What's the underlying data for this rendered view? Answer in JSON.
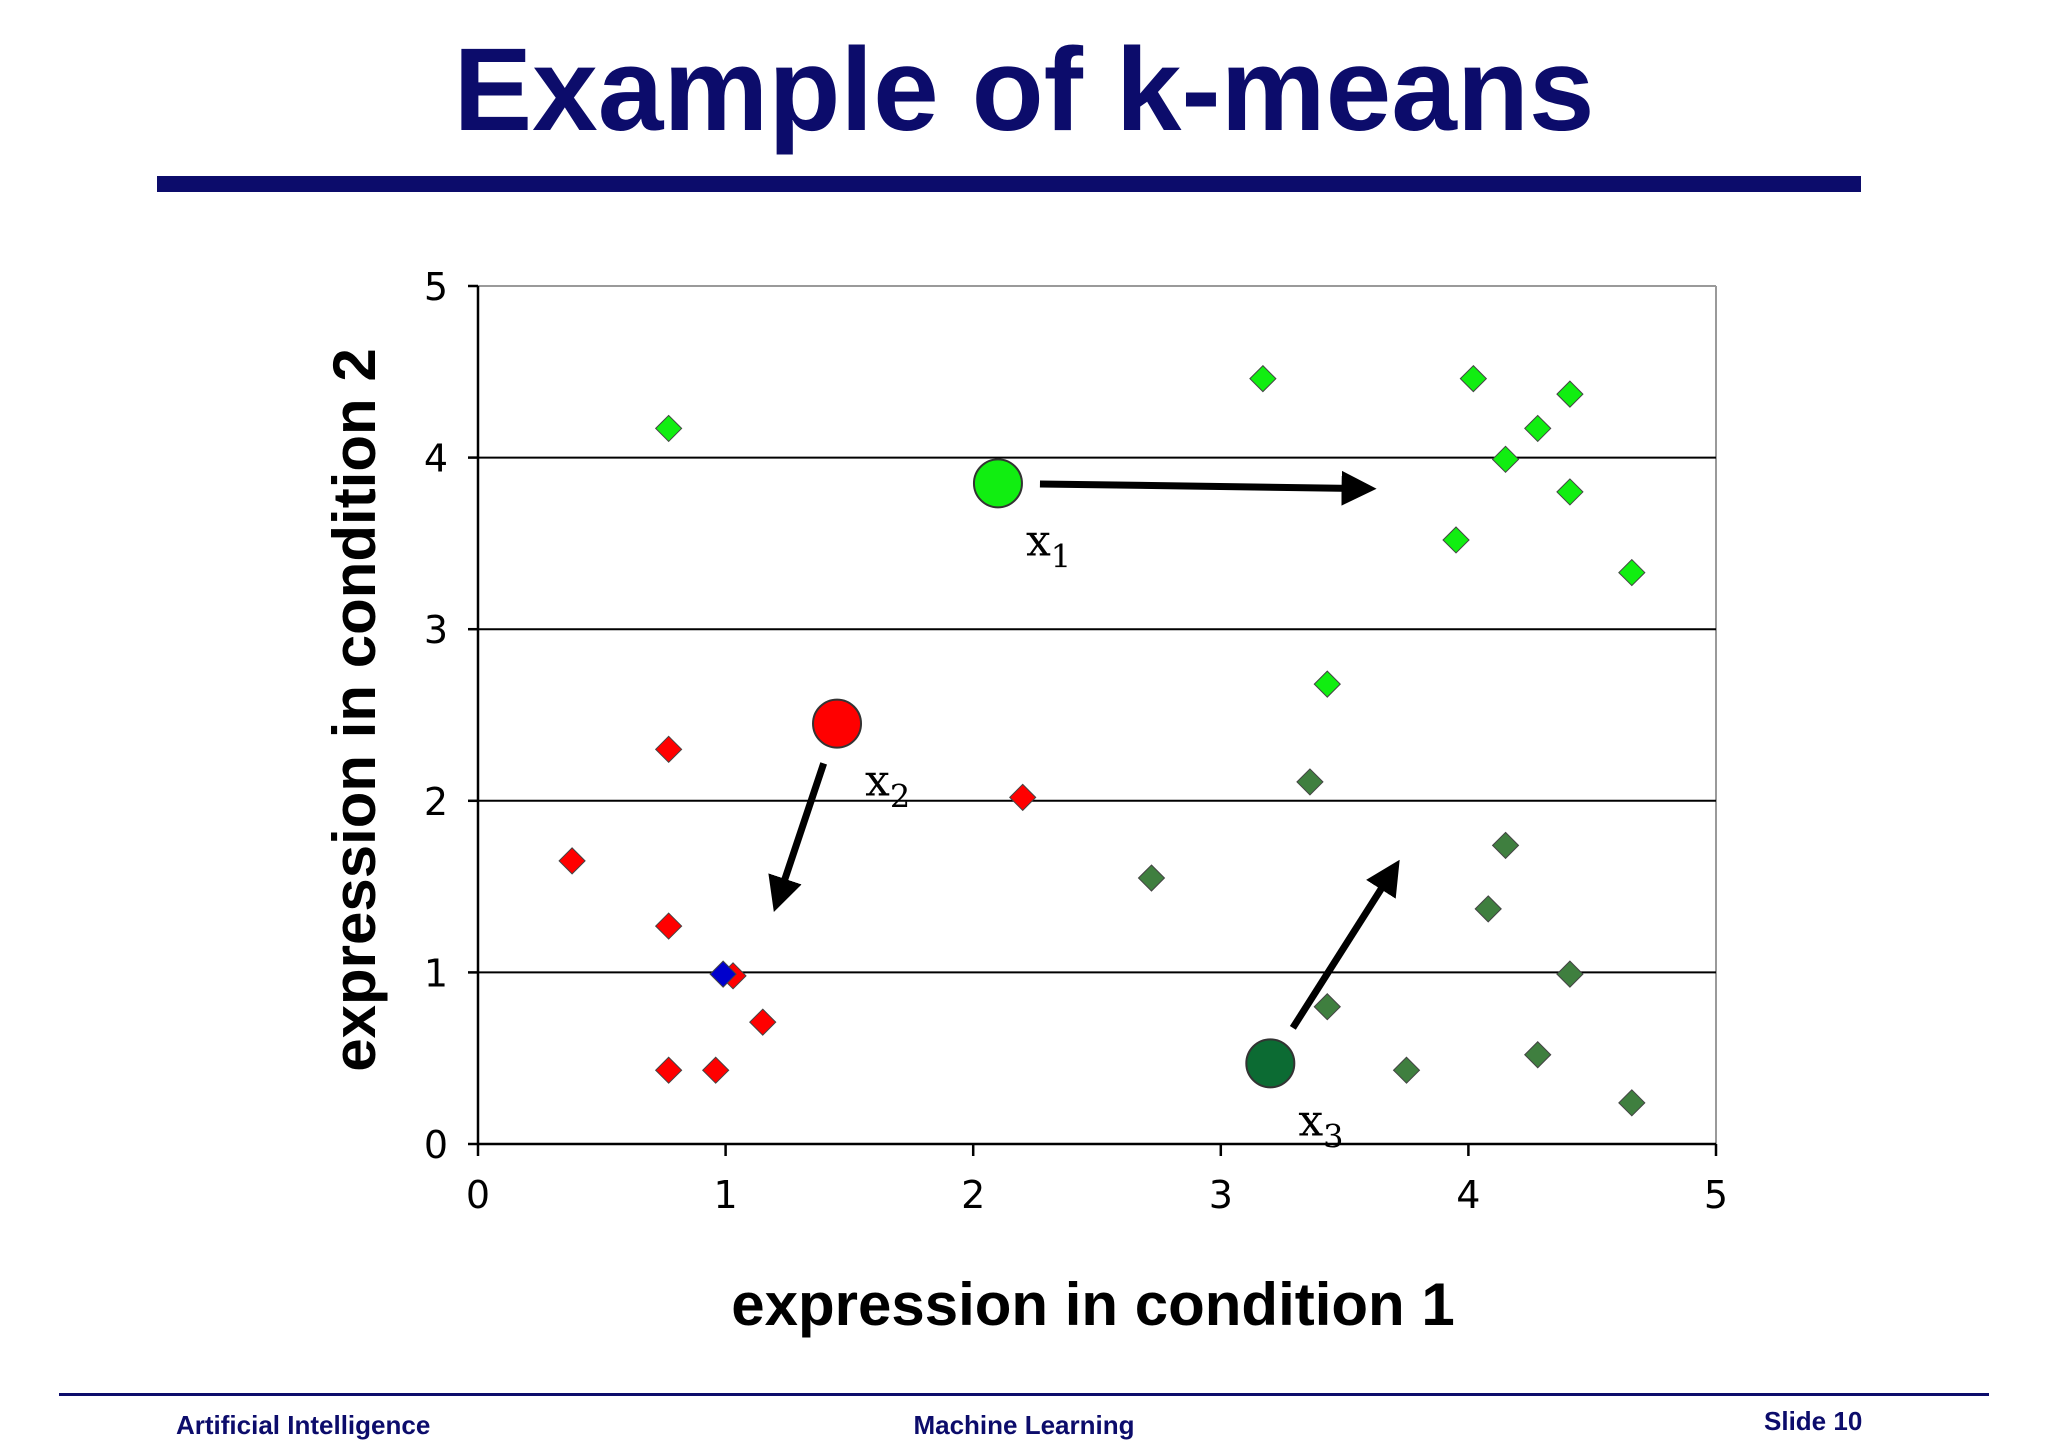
{
  "slide": {
    "title": "Example of k-means",
    "footer_left": "Artificial Intelligence",
    "footer_center": "Machine Learning",
    "footer_right": "Slide 10"
  },
  "colors": {
    "title": "#0c0c6b",
    "red": "#ff0000",
    "light_green": "#11ee11",
    "dark_green": "#3f7f3f",
    "centroid_dark_green": "#0c6b33",
    "blue": "#0000cc"
  },
  "chart_data": {
    "type": "scatter",
    "xlabel": "expression in condition 1",
    "ylabel": "expression in condition 2",
    "xlim": [
      0,
      5
    ],
    "ylim": [
      0,
      5
    ],
    "xticks": [
      "0",
      "1",
      "2",
      "3",
      "4",
      "5"
    ],
    "yticks": [
      "0",
      "1",
      "2",
      "3",
      "4",
      "5"
    ],
    "grid": "horizontal",
    "series": [
      {
        "name": "cluster-red",
        "color": "#ff0000",
        "marker": "diamond",
        "points": [
          [
            0.38,
            1.65
          ],
          [
            0.77,
            2.3
          ],
          [
            0.77,
            1.27
          ],
          [
            0.77,
            0.43
          ],
          [
            0.96,
            0.43
          ],
          [
            1.03,
            0.98
          ],
          [
            1.15,
            0.71
          ],
          [
            2.2,
            2.02
          ]
        ]
      },
      {
        "name": "cluster-light-green",
        "color": "#11ee11",
        "marker": "diamond",
        "points": [
          [
            0.77,
            4.17
          ],
          [
            3.17,
            4.46
          ],
          [
            4.02,
            4.46
          ],
          [
            4.41,
            4.37
          ],
          [
            4.28,
            4.17
          ],
          [
            4.15,
            3.99
          ],
          [
            4.41,
            3.8
          ],
          [
            3.95,
            3.52
          ],
          [
            4.66,
            3.33
          ],
          [
            3.43,
            2.68
          ]
        ]
      },
      {
        "name": "cluster-dark-green",
        "color": "#3f7f3f",
        "marker": "diamond",
        "points": [
          [
            3.36,
            2.11
          ],
          [
            2.72,
            1.55
          ],
          [
            4.15,
            1.74
          ],
          [
            4.08,
            1.37
          ],
          [
            4.41,
            0.99
          ],
          [
            3.43,
            0.8
          ],
          [
            3.75,
            0.43
          ],
          [
            4.28,
            0.52
          ],
          [
            4.66,
            0.24
          ]
        ]
      },
      {
        "name": "misc-blue",
        "color": "#0000cc",
        "marker": "diamond",
        "points": [
          [
            0.99,
            0.99
          ]
        ]
      }
    ],
    "centroids": [
      {
        "label": "x",
        "subscript": "1",
        "x": 2.1,
        "y": 3.85,
        "color": "#11ee11",
        "arrow_to": [
          3.55,
          3.82
        ]
      },
      {
        "label": "x",
        "subscript": "2",
        "x": 1.45,
        "y": 2.45,
        "color": "#ff0000",
        "arrow_to": [
          1.22,
          1.46
        ]
      },
      {
        "label": "x",
        "subscript": "3",
        "x": 3.2,
        "y": 0.47,
        "color": "#0c6b33",
        "arrow_to": [
          3.68,
          1.56
        ]
      }
    ]
  }
}
